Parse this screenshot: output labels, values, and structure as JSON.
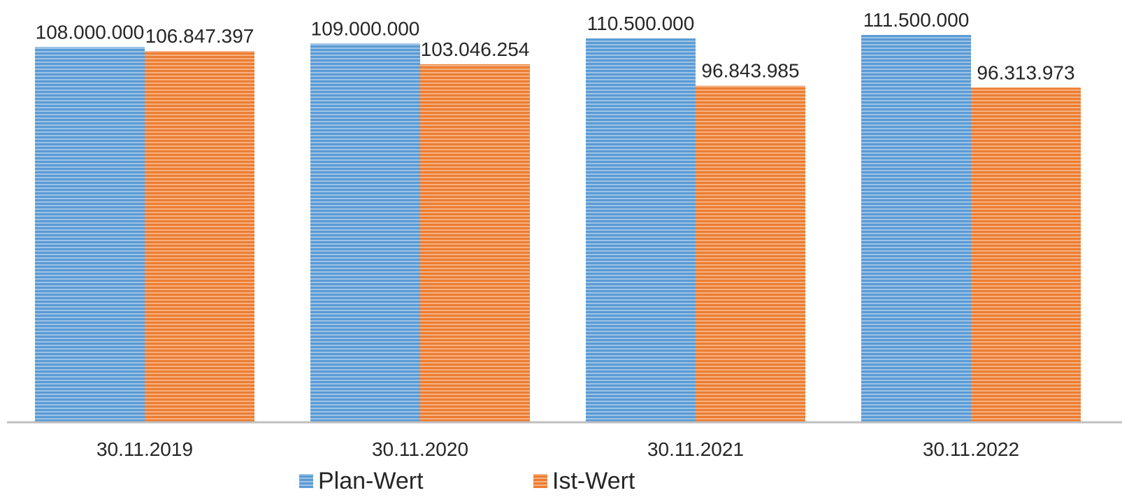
{
  "chart_data": {
    "type": "bar",
    "categories": [
      "30.11.2019",
      "30.11.2020",
      "30.11.2021",
      "30.11.2022"
    ],
    "series": [
      {
        "name": "Plan-Wert",
        "values": [
          108000000,
          109000000,
          110500000,
          111500000
        ],
        "labels": [
          "108.000.000",
          "109.000.000",
          "110.500.000",
          "111.500.000"
        ],
        "color": "#5B9BD5"
      },
      {
        "name": "Ist-Wert",
        "values": [
          106847397,
          103046254,
          96843985,
          96313973
        ],
        "labels": [
          "106.847.397",
          "103.046.254",
          "96.843.985",
          "96.313.973"
        ],
        "color": "#ED7D31"
      }
    ],
    "ylim": [
      0,
      111500000
    ],
    "grid": false,
    "legend": "bottom"
  }
}
